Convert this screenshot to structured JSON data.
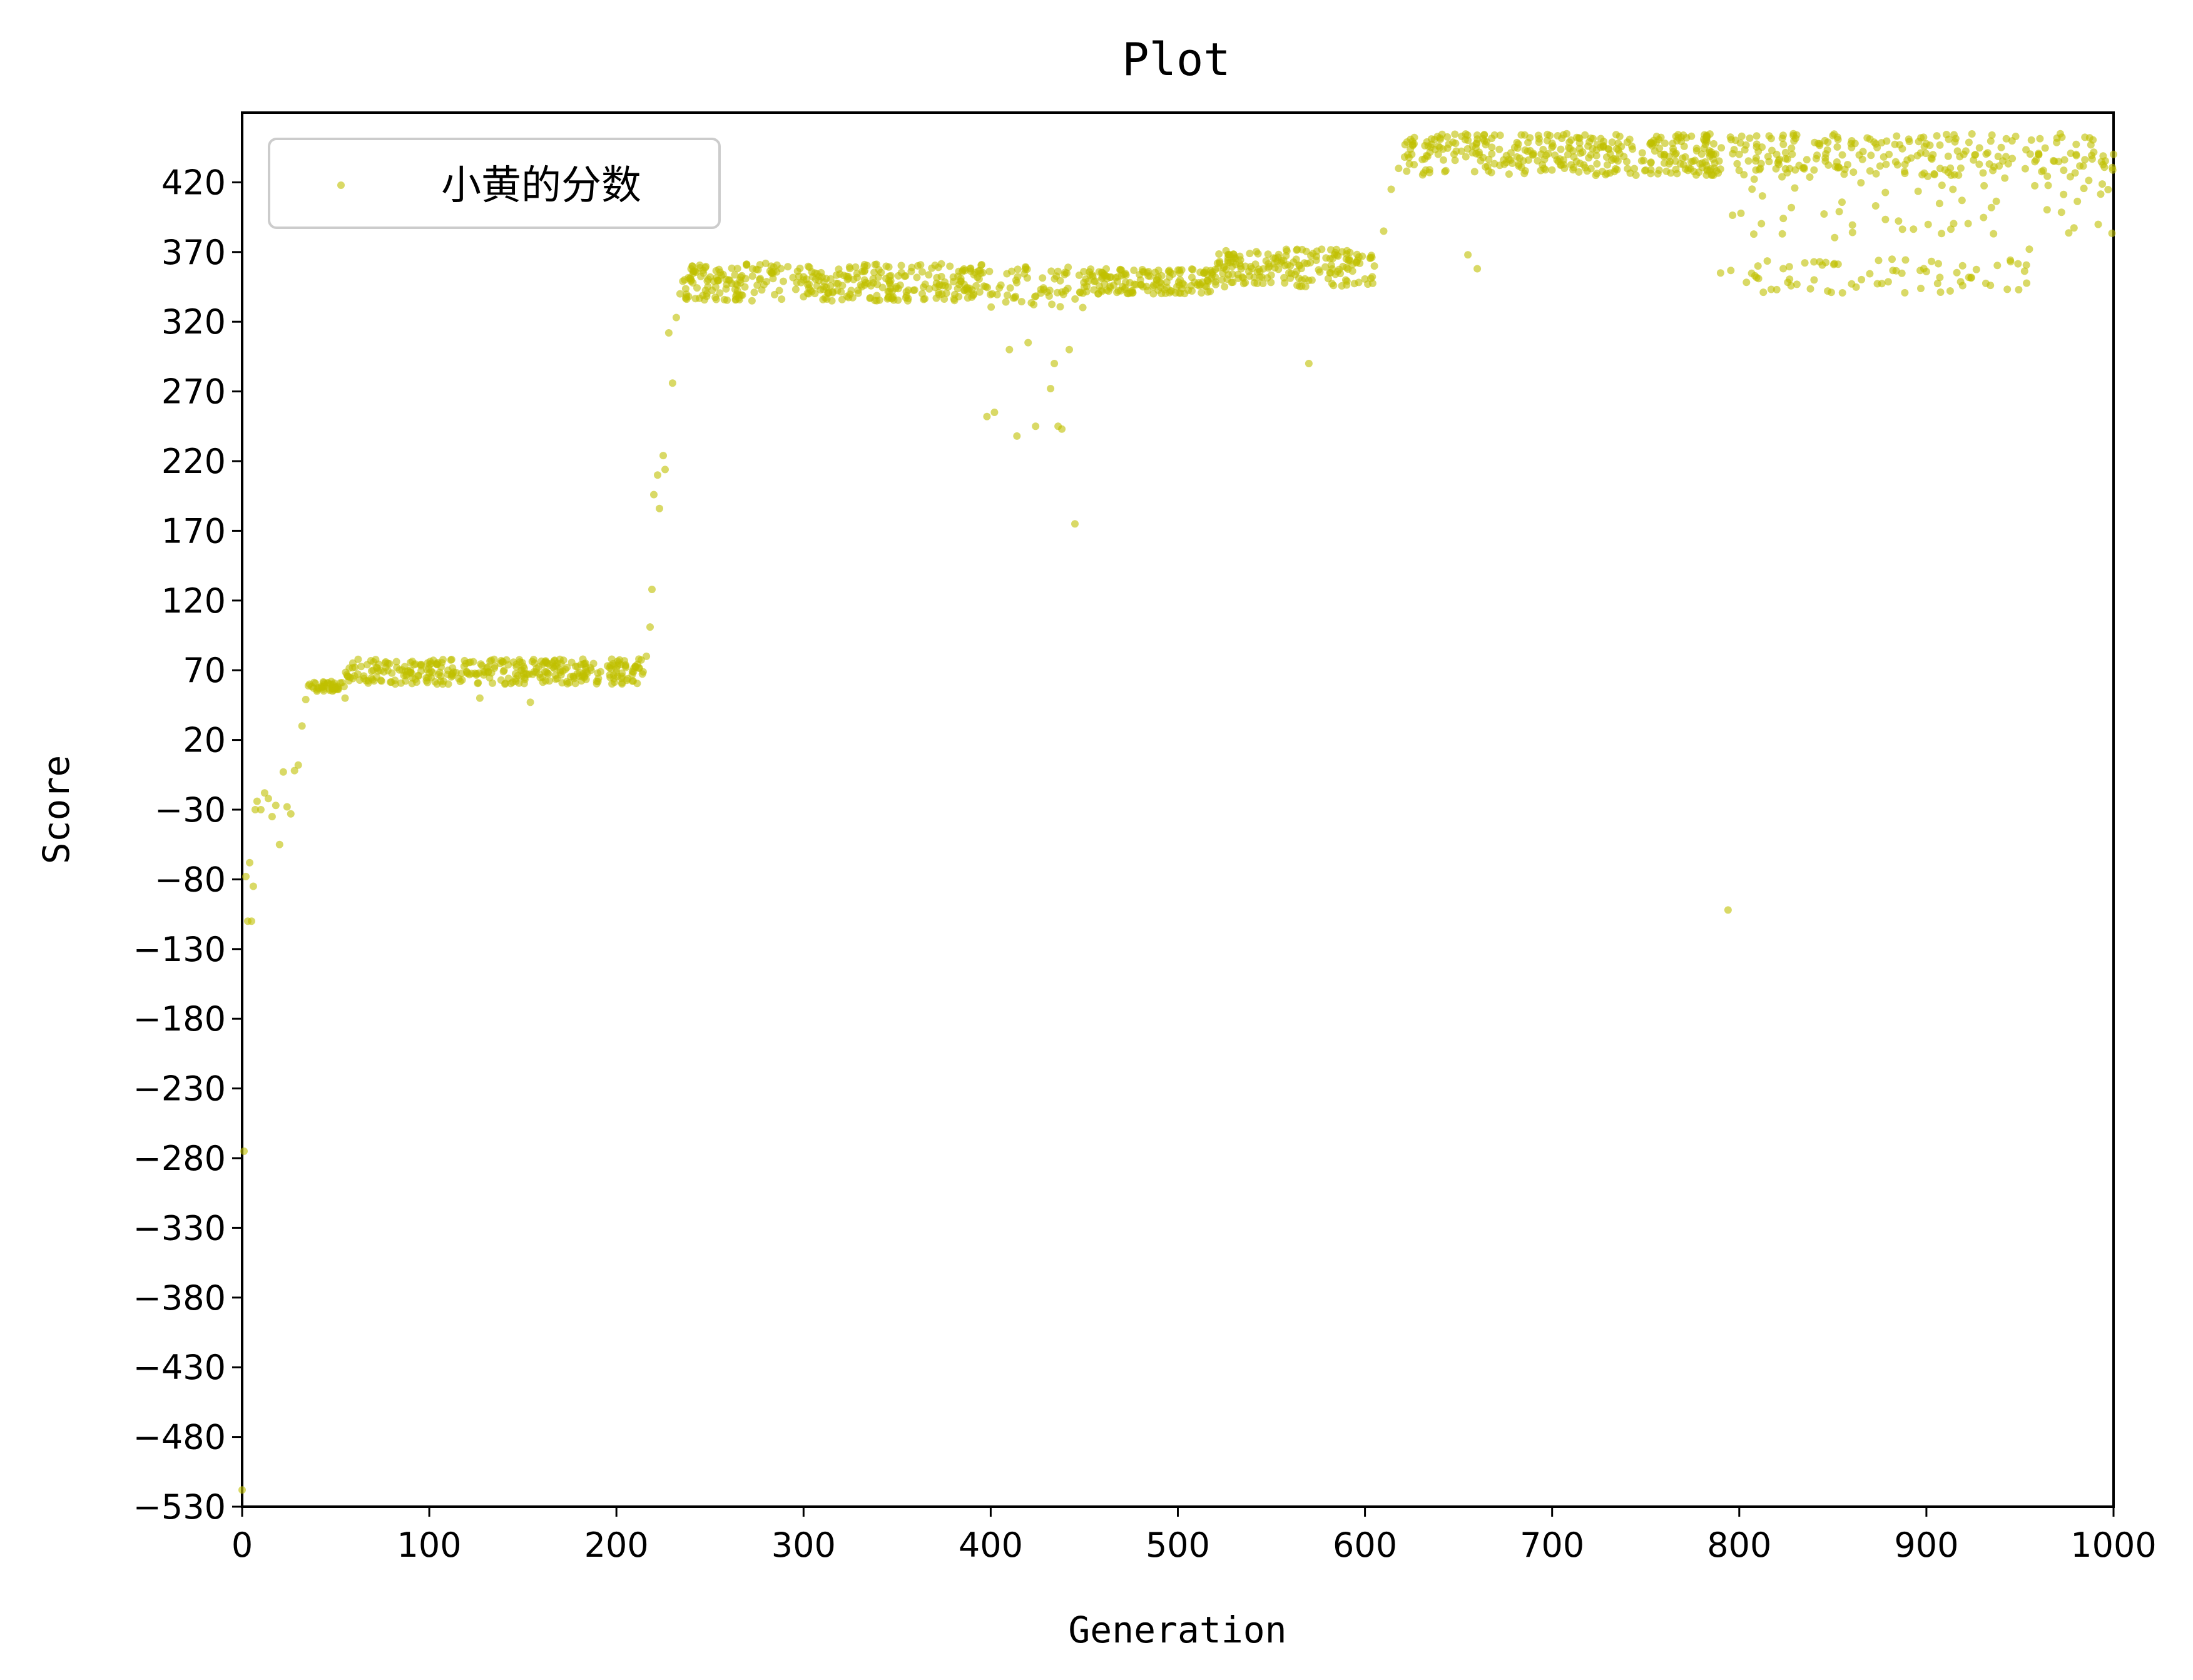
{
  "chart_data": {
    "type": "scatter",
    "title": "Plot",
    "xlabel": "Generation",
    "ylabel": "Score",
    "xlim": [
      0,
      1000
    ],
    "ylim": [
      -530,
      470
    ],
    "x_ticks": [
      0,
      100,
      200,
      300,
      400,
      500,
      600,
      700,
      800,
      900,
      1000
    ],
    "y_ticks": [
      -530,
      -480,
      -430,
      -380,
      -330,
      -280,
      -230,
      -180,
      -130,
      -80,
      -30,
      20,
      70,
      120,
      170,
      220,
      270,
      320,
      370,
      420
    ],
    "grid": false,
    "legend_position": "upper-left",
    "color": "#bfbf00",
    "series": [
      {
        "name": "小黄的分数",
        "profile_description_as_points": true,
        "anchors": [
          [
            0,
            -518
          ],
          [
            1,
            -275
          ],
          [
            2,
            -78
          ],
          [
            3,
            -110
          ],
          [
            4,
            -68
          ],
          [
            5,
            -110
          ],
          [
            6,
            -85
          ],
          [
            7,
            -30
          ],
          [
            8,
            -24
          ],
          [
            10,
            -30
          ],
          [
            12,
            -18
          ],
          [
            14,
            -22
          ],
          [
            16,
            -35
          ],
          [
            18,
            -27
          ],
          [
            20,
            -55
          ],
          [
            22,
            -3
          ],
          [
            24,
            -28
          ],
          [
            26,
            -33
          ],
          [
            28,
            -2
          ],
          [
            30,
            2
          ],
          [
            32,
            30
          ],
          [
            34,
            49
          ],
          [
            36,
            60
          ],
          [
            40,
            55
          ],
          [
            44,
            60
          ],
          [
            50,
            58
          ],
          [
            55,
            50
          ],
          [
            60,
            66
          ],
          [
            70,
            70
          ],
          [
            80,
            68
          ],
          [
            90,
            70
          ],
          [
            100,
            68
          ],
          [
            110,
            70
          ],
          [
            120,
            69
          ],
          [
            127,
            50
          ],
          [
            140,
            70
          ],
          [
            154,
            47
          ],
          [
            170,
            70
          ],
          [
            190,
            68
          ],
          [
            205,
            72
          ],
          [
            212,
            78
          ],
          [
            216,
            80
          ],
          [
            218,
            101
          ],
          [
            219,
            128
          ],
          [
            220,
            196
          ],
          [
            222,
            210
          ],
          [
            223,
            186
          ],
          [
            225,
            224
          ],
          [
            226,
            214
          ],
          [
            228,
            312
          ],
          [
            230,
            276
          ],
          [
            232,
            323
          ],
          [
            234,
            340
          ],
          [
            240,
            350
          ],
          [
            260,
            350
          ],
          [
            300,
            350
          ],
          [
            340,
            352
          ],
          [
            380,
            352
          ],
          [
            398,
            252
          ],
          [
            402,
            255
          ],
          [
            410,
            300
          ],
          [
            414,
            238
          ],
          [
            420,
            305
          ],
          [
            424,
            245
          ],
          [
            432,
            272
          ],
          [
            434,
            290
          ],
          [
            436,
            245
          ],
          [
            438,
            243
          ],
          [
            442,
            300
          ],
          [
            445,
            175
          ],
          [
            450,
            345
          ],
          [
            480,
            350
          ],
          [
            520,
            352
          ],
          [
            560,
            360
          ],
          [
            570,
            290
          ],
          [
            590,
            365
          ],
          [
            605,
            360
          ],
          [
            610,
            385
          ],
          [
            614,
            415
          ],
          [
            618,
            430
          ],
          [
            625,
            440
          ],
          [
            640,
            445
          ],
          [
            655,
            368
          ],
          [
            660,
            358
          ],
          [
            680,
            445
          ],
          [
            700,
            448
          ],
          [
            730,
            444
          ],
          [
            760,
            440
          ],
          [
            785,
            440
          ],
          [
            790,
            355
          ],
          [
            794,
            -102
          ],
          [
            800,
            440
          ],
          [
            810,
            360
          ],
          [
            820,
            440
          ],
          [
            840,
            350
          ],
          [
            860,
            445
          ],
          [
            880,
            440
          ],
          [
            900,
            356
          ],
          [
            920,
            440
          ],
          [
            940,
            445
          ],
          [
            955,
            372
          ],
          [
            960,
            440
          ],
          [
            980,
            440
          ],
          [
            1000,
            440
          ]
        ]
      }
    ]
  }
}
